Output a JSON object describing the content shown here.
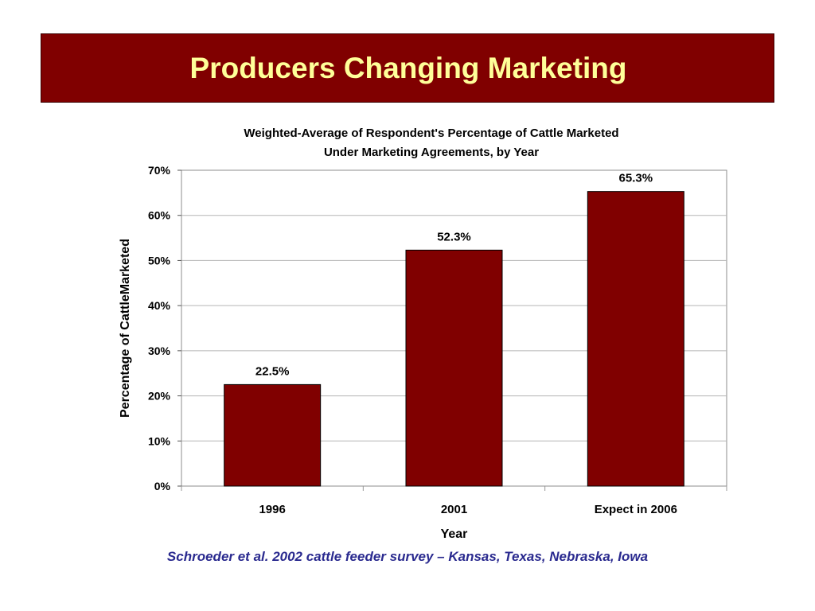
{
  "slide": {
    "title": "Producers Changing Marketing",
    "footer": "Schroeder et al. 2002 cattle feeder survey – Kansas, Texas, Nebraska, Iowa"
  },
  "colors": {
    "banner": "#800000",
    "title_text": "#ffff99",
    "bar": "#800000",
    "footer_text": "#2a2a8f"
  },
  "chart_data": {
    "type": "bar",
    "title_lines": [
      "Weighted-Average of Respondent's Percentage of Cattle Marketed",
      "Under Marketing Agreements, by Year"
    ],
    "categories": [
      "1996",
      "2001",
      "Expect in 2006"
    ],
    "values": [
      22.5,
      52.3,
      65.3
    ],
    "data_labels": [
      "22.5%",
      "52.3%",
      "65.3%"
    ],
    "xlabel": "Year",
    "ylabel": "Percentage of CattleMarketed",
    "ylim": [
      0,
      70
    ],
    "yticks": [
      0,
      10,
      20,
      30,
      40,
      50,
      60,
      70
    ],
    "ytick_labels": [
      "0%",
      "10%",
      "20%",
      "30%",
      "40%",
      "50%",
      "60%",
      "70%"
    ],
    "grid": true,
    "legend": "none"
  }
}
